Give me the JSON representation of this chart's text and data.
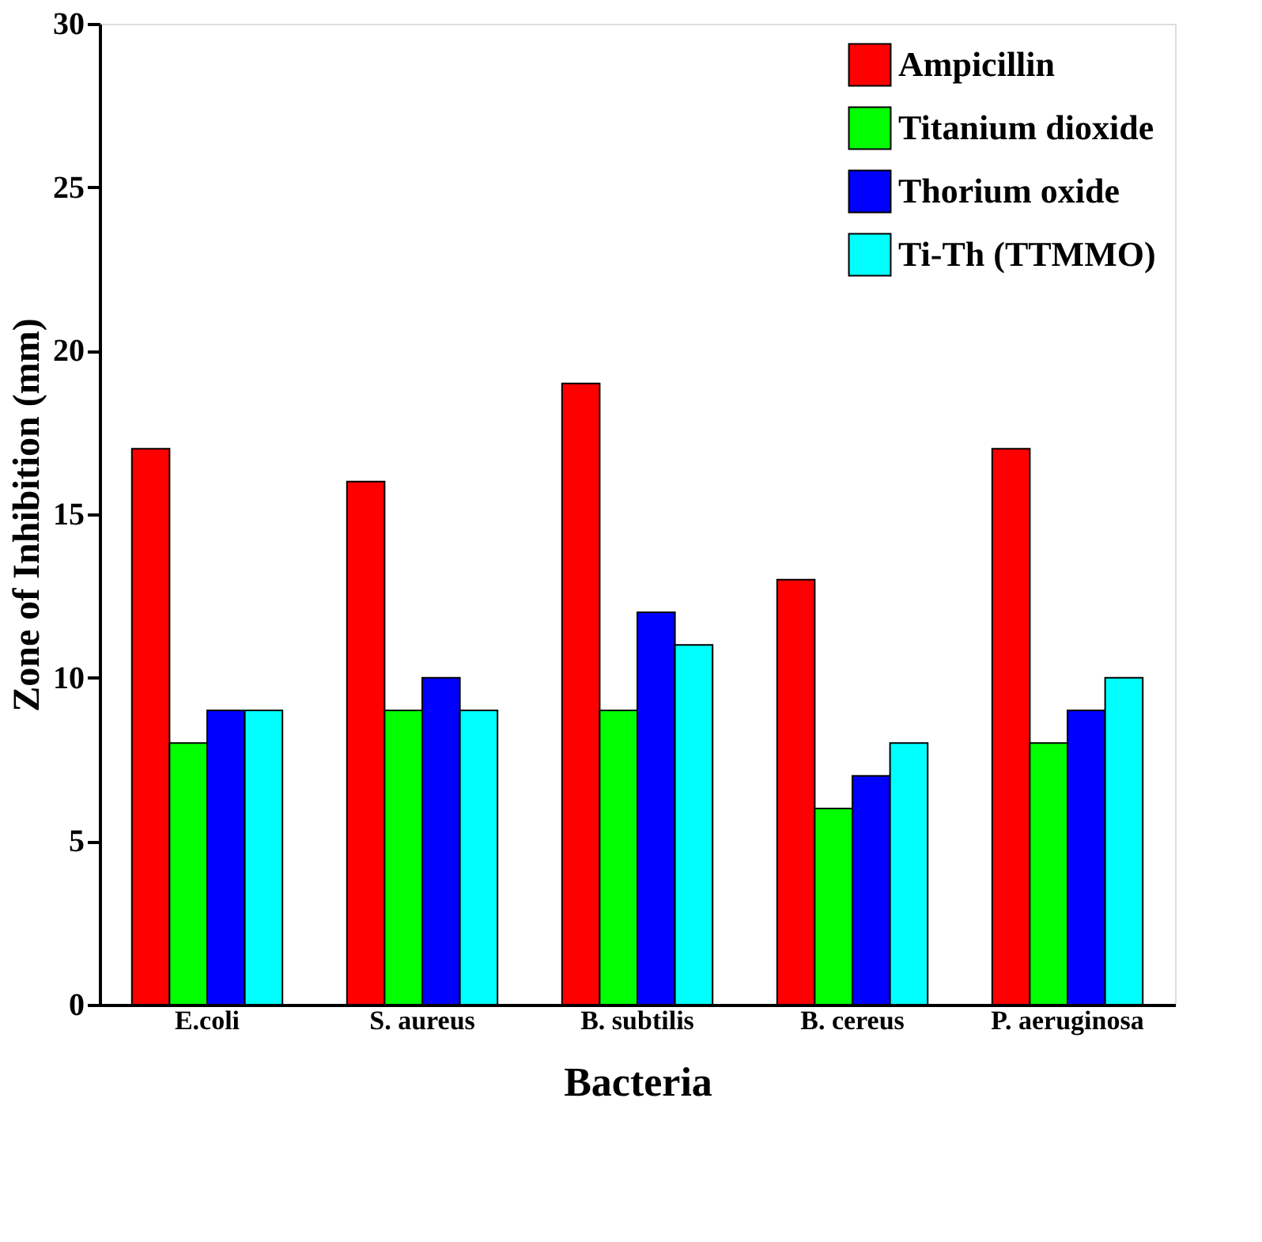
{
  "chart_data": {
    "type": "bar",
    "xlabel": "Bacteria",
    "ylabel": "Zone of Inhibition (mm)",
    "categories": [
      "E.coli",
      "S. aureus",
      "B. subtilis",
      "B. cereus",
      "P. aeruginosa"
    ],
    "series": [
      {
        "name": "Ampicillin",
        "color": "#ff0000",
        "values": [
          17,
          16,
          19,
          13,
          17
        ]
      },
      {
        "name": "Titanium dioxide",
        "color": "#00ff00",
        "values": [
          8,
          9,
          9,
          6,
          8
        ]
      },
      {
        "name": "Thorium oxide",
        "color": "#0000ff",
        "values": [
          9,
          10,
          12,
          7,
          9
        ]
      },
      {
        "name": "Ti-Th (TTMMO)",
        "color": "#00ffff",
        "values": [
          9,
          9,
          11,
          8,
          10
        ]
      }
    ],
    "ylim": [
      0,
      30
    ],
    "yticks": [
      0,
      5,
      10,
      15,
      20,
      25,
      30
    ],
    "grid": false,
    "legend": "top right"
  }
}
